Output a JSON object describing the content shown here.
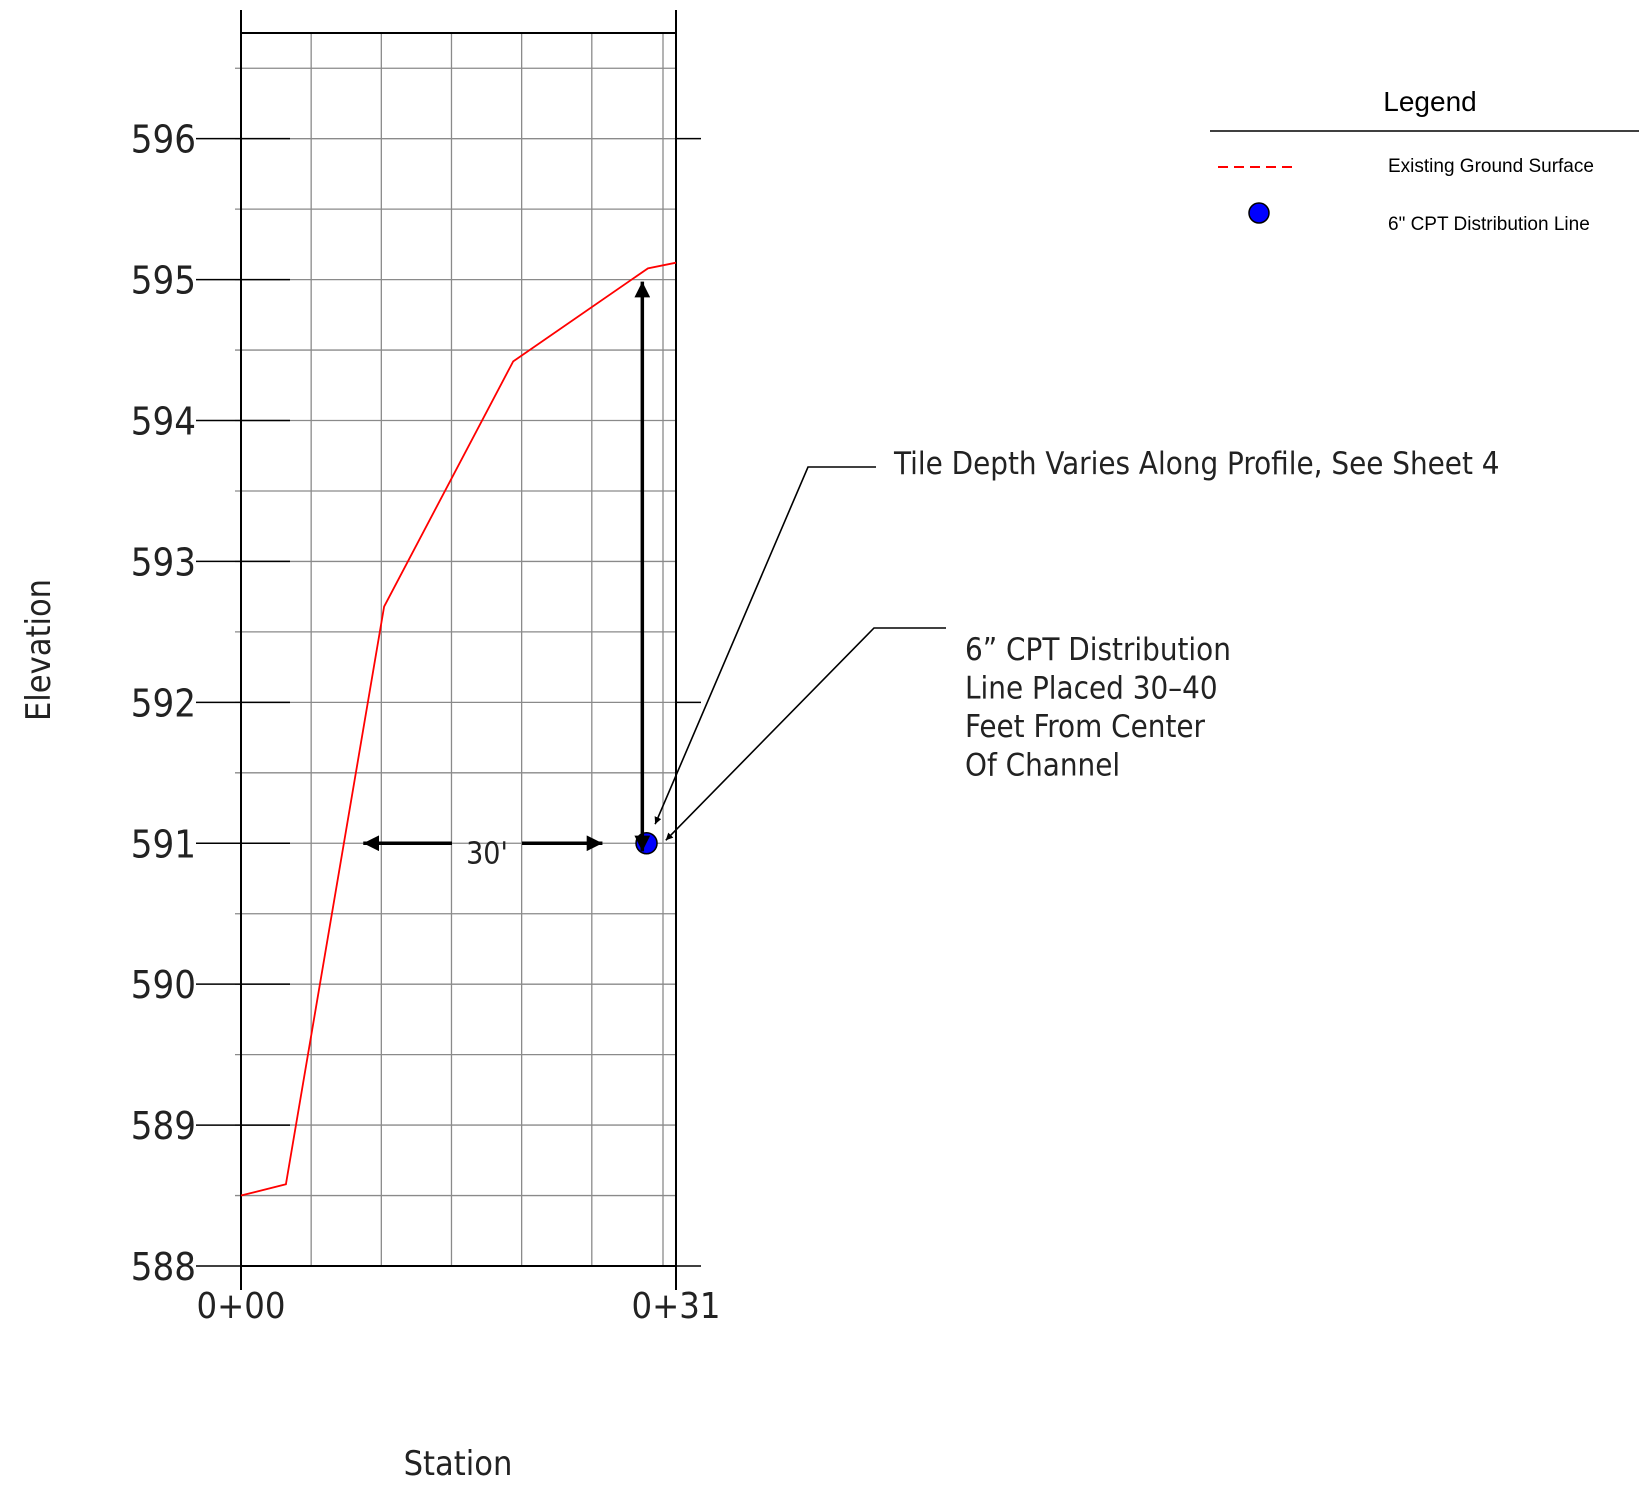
{
  "chart_data": {
    "type": "line",
    "title": "",
    "xlabel": "Station",
    "ylabel": "Elevation",
    "xlim": [
      0,
      31
    ],
    "ylim": [
      588,
      596.75
    ],
    "yticks": [
      {
        "value": 588,
        "label": "588"
      },
      {
        "value": 589,
        "label": "589"
      },
      {
        "value": 590,
        "label": "590"
      },
      {
        "value": 591,
        "label": "591"
      },
      {
        "value": 592,
        "label": "592"
      },
      {
        "value": 593,
        "label": "593"
      },
      {
        "value": 594,
        "label": "594"
      },
      {
        "value": 595,
        "label": "595"
      },
      {
        "value": 596,
        "label": "596"
      }
    ],
    "xticks": [
      {
        "value": 0,
        "label": "0+00"
      },
      {
        "value": 31,
        "label": "0+31"
      }
    ],
    "grid": true,
    "series": [
      {
        "name": "Existing Ground Surface",
        "color": "#ff0000",
        "style": "solid-line",
        "x": [
          0,
          3.2,
          10.2,
          19.4,
          29.0,
          31.0
        ],
        "y": [
          588.5,
          588.58,
          592.68,
          594.42,
          595.08,
          595.12
        ]
      },
      {
        "name": "6\" CPT Distribution Line",
        "color": "#0000ff",
        "style": "point",
        "x": [
          28.9
        ],
        "y": [
          591.0
        ]
      }
    ],
    "dimension": {
      "label": "30'",
      "y": 591.0,
      "x_from": 8.0,
      "x_to": 25.9
    },
    "vertical_dimension": {
      "x": 28.6,
      "y_from": 591.07,
      "y_to": 595.0
    },
    "annotations": [
      {
        "id": "tile-depth",
        "text": "Tile Depth Varies Along Profile, See Sheet 4",
        "target_x": 29.3,
        "target_y": 591.05
      },
      {
        "id": "cpt-line",
        "lines": [
          "6” CPT Distribution",
          "Line Placed 30–40",
          "Feet From Center",
          "Of Channel"
        ],
        "target_x": 30.2,
        "target_y": 591.0
      }
    ],
    "legend": {
      "title": "Legend",
      "position": "top-right",
      "entries": [
        {
          "label": "Existing Ground Surface",
          "color": "#ff0000",
          "symbol": "dashed-line"
        },
        {
          "label": "6\" CPT Distribution Line",
          "color": "#0000ff",
          "symbol": "dot"
        }
      ]
    }
  }
}
